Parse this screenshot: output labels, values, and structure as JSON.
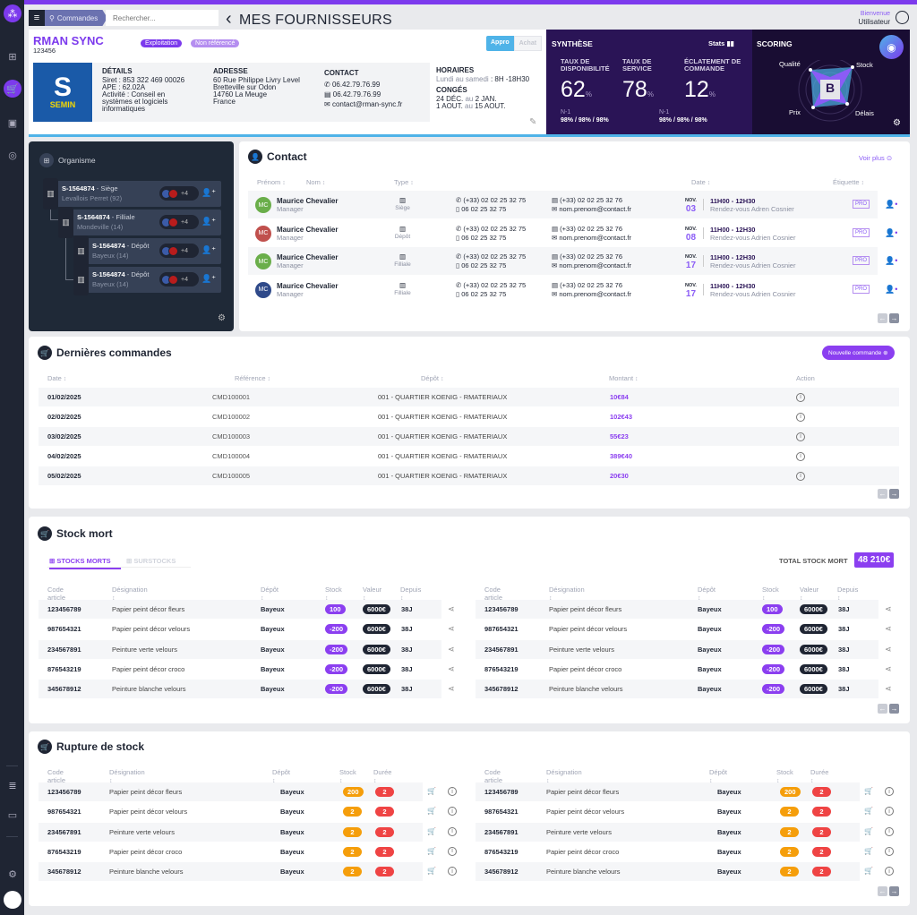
{
  "header": {
    "menu_icon": "hamburger-icon",
    "search_chip": "Commandes",
    "search_placeholder": "Rechercher...",
    "back": "‹",
    "title": "MES FOURNISSEURS",
    "welcome": "Bienvenue",
    "user": "Utilisateur"
  },
  "supplier": {
    "name": "RMAN SYNC",
    "code": "123456",
    "tags": [
      "Exploitation",
      "Non référencé"
    ],
    "toggle": [
      "Appro",
      "Achat"
    ],
    "logo": {
      "letter": "S",
      "brand": "SEMIN"
    },
    "details": {
      "title": "DÉTAILS",
      "lines": [
        "Siret : 853 322 469 00026",
        "APE : 62.02A",
        "Activité : Conseil en",
        "systèmes et logiciels",
        "informatiques"
      ]
    },
    "address": {
      "title": "ADRESSE",
      "lines": [
        "60 Rue Philippe Livry Level",
        "Bretteville sur Odon",
        "14760 La Meuge",
        "France"
      ]
    },
    "contact": {
      "title": "CONTACT",
      "phone": "06.42.79.76.99",
      "fax": "06.42.79.76.99",
      "email": "contact@rman-sync.fr"
    },
    "hours": {
      "title": "HORAIRES",
      "days": "Lundi au samedi",
      "time": ": 8H -18H30"
    },
    "holidays": {
      "title": "CONGÉS",
      "l1a": "24 DÉC.",
      "l1b": "au",
      "l1c": "2 JAN.",
      "l2a": "1 AOUT.",
      "l2b": "au",
      "l2c": "15 AOUT."
    }
  },
  "synthese": {
    "title": "SYNTHÈSE",
    "stats": "Stats",
    "kpis": [
      {
        "label1": "TAUX DE",
        "label2": "DISPONIBILITÉ",
        "value": "62",
        "unit": "%"
      },
      {
        "label1": "TAUX DE",
        "label2": "SERVICE",
        "value": "78",
        "unit": "%"
      },
      {
        "label1": "ÉCLATEMENT DE",
        "label2": "COMMANDE",
        "value": "12",
        "unit": "%"
      }
    ],
    "n1": [
      {
        "label": "N-1",
        "values": "98% / 98% / 98%"
      },
      {
        "label": "N-1",
        "values": "98% / 98% / 98%"
      }
    ]
  },
  "scoring": {
    "title": "SCORING",
    "grade": "B",
    "axes": [
      "Qualité",
      "Stock",
      "Prix",
      "Délais"
    ]
  },
  "organisme": {
    "title": "Organisme",
    "nodes": [
      {
        "code": "S-1564874",
        "type": "Siège",
        "loc": "Levallois Perret (92)",
        "more": "+4"
      },
      {
        "code": "S-1564874",
        "type": "Filliale",
        "loc": "Mondeville (14)",
        "more": "+4"
      },
      {
        "code": "S-1564874",
        "type": "Dépôt",
        "loc": "Bayeux (14)",
        "more": "+4"
      },
      {
        "code": "S-1564874",
        "type": "Dépôt",
        "loc": "Bayeux (14)",
        "more": "+4"
      }
    ]
  },
  "contacts": {
    "title": "Contact",
    "see_more": "Voir plus",
    "headers": {
      "first": "Prénom",
      "last": "Nom",
      "type": "Type",
      "date": "Date",
      "tag": "Étiquette"
    },
    "rows": [
      {
        "initials": "MC",
        "color": "#6aae4a",
        "name": "Maurice Chevalier",
        "role": "Manager",
        "type": "Siège",
        "phone": "(+33) 02 02 25 32 75",
        "mobile": "06 02 25 32 75",
        "fax": "(+33) 02 02 25 32 76",
        "email": "nom.prenom@contact.fr",
        "month": "NOV.",
        "day": "03",
        "time": "11H00 - 12H30",
        "event": "Rendez-vous Adren Cosnier",
        "tag": "PRO"
      },
      {
        "initials": "MC",
        "color": "#c0504d",
        "name": "Maurice Chevalier",
        "role": "Manager",
        "type": "Dépôt",
        "phone": "(+33) 02 02 25 32 75",
        "mobile": "06 02 25 32 75",
        "fax": "(+33) 02 02 25 32 76",
        "email": "nom.prenom@contact.fr",
        "month": "NOV.",
        "day": "08",
        "time": "11H00 - 12H30",
        "event": "Rendez-vous Adrien Cosnier",
        "tag": "PRO"
      },
      {
        "initials": "MC",
        "color": "#6aae4a",
        "name": "Maurice Chevalier",
        "role": "Manager",
        "type": "Filliale",
        "phone": "(+33) 02 02 25 32 75",
        "mobile": "06 02 25 32 75",
        "fax": "(+33) 02 02 25 32 76",
        "email": "nom.prenom@contact.fr",
        "month": "NOV.",
        "day": "17",
        "time": "11H00 - 12H30",
        "event": "Rendez-vous Adrien Cosnier",
        "tag": "PRO"
      },
      {
        "initials": "MC",
        "color": "#2f4a8a",
        "name": "Maurice Chevalier",
        "role": "Manager",
        "type": "Filliale",
        "phone": "(+33) 02 02 25 32 75",
        "mobile": "06 02 25 32 75",
        "fax": "(+33) 02 02 25 32 76",
        "email": "nom.prenom@contact.fr",
        "month": "NOV.",
        "day": "17",
        "time": "11H00 - 12H30",
        "event": "Rendez-vous Adrien Cosnier",
        "tag": "PRO"
      }
    ]
  },
  "orders": {
    "title": "Dernières commandes",
    "new_button": "Nouvelle commande",
    "headers": {
      "date": "Date",
      "ref": "Référence",
      "depot": "Dépôt",
      "amount": "Montant",
      "action": "Action"
    },
    "rows": [
      {
        "date": "01/02/2025",
        "ref": "CMD100001",
        "depot": "001 - QUARTIER KOENIG - RMATERIAUX",
        "amount": "10€84"
      },
      {
        "date": "02/02/2025",
        "ref": "CMD100002",
        "depot": "001 - QUARTIER KOENIG - RMATERIAUX",
        "amount": "102€43"
      },
      {
        "date": "03/02/2025",
        "ref": "CMD100003",
        "depot": "001 - QUARTIER KOENIG - RMATERIAUX",
        "amount": "55€23"
      },
      {
        "date": "04/02/2025",
        "ref": "CMD100004",
        "depot": "001 - QUARTIER KOENIG - RMATERIAUX",
        "amount": "389€40"
      },
      {
        "date": "05/02/2025",
        "ref": "CMD100005",
        "depot": "001 - QUARTIER KOENIG - RMATERIAUX",
        "amount": "20€30"
      }
    ]
  },
  "dead_stock": {
    "title": "Stock mort",
    "tabs": [
      "STOCKS MORTS",
      "SURSTOCKS"
    ],
    "total_label": "TOTAL STOCK MORT",
    "total": "48 210€",
    "headers": {
      "code": "Code article",
      "designation": "Désignation",
      "depot": "Dépôt",
      "stock": "Stock",
      "value": "Valeur",
      "since": "Depuis"
    },
    "rows": [
      {
        "code": "123456789",
        "designation": "Papier peint décor fleurs",
        "depot": "Bayeux",
        "stock": "100",
        "value": "6000€",
        "since": "38J"
      },
      {
        "code": "987654321",
        "designation": "Papier peint décor velours",
        "depot": "Bayeux",
        "stock": "-200",
        "value": "6000€",
        "since": "38J"
      },
      {
        "code": "234567891",
        "designation": "Peinture verte velours",
        "depot": "Bayeux",
        "stock": "-200",
        "value": "6000€",
        "since": "38J"
      },
      {
        "code": "876543219",
        "designation": "Papier peint décor croco",
        "depot": "Bayeux",
        "stock": "-200",
        "value": "6000€",
        "since": "38J"
      },
      {
        "code": "345678912",
        "designation": "Peinture blanche velours",
        "depot": "Bayeux",
        "stock": "-200",
        "value": "6000€",
        "since": "38J"
      }
    ]
  },
  "stockout": {
    "title": "Rupture de stock",
    "headers": {
      "code": "Code article",
      "designation": "Désignation",
      "depot": "Dépôt",
      "stock": "Stock",
      "duration": "Durée"
    },
    "rows": [
      {
        "code": "123456789",
        "designation": "Papier peint décor fleurs",
        "depot": "Bayeux",
        "stock": "200",
        "duration": "2"
      },
      {
        "code": "987654321",
        "designation": "Papier peint décor velours",
        "depot": "Bayeux",
        "stock": "2",
        "duration": "2"
      },
      {
        "code": "234567891",
        "designation": "Peinture verte velours",
        "depot": "Bayeux",
        "stock": "2",
        "duration": "2"
      },
      {
        "code": "876543219",
        "designation": "Papier peint décor croco",
        "depot": "Bayeux",
        "stock": "2",
        "duration": "2"
      },
      {
        "code": "345678912",
        "designation": "Peinture blanche velours",
        "depot": "Bayeux",
        "stock": "2",
        "duration": "2"
      }
    ]
  },
  "colors": {
    "accent": "#7c3aed",
    "dark": "#1f2533",
    "orange": "#f59e0b",
    "red": "#ef4444",
    "blue": "#4fb3e8"
  }
}
